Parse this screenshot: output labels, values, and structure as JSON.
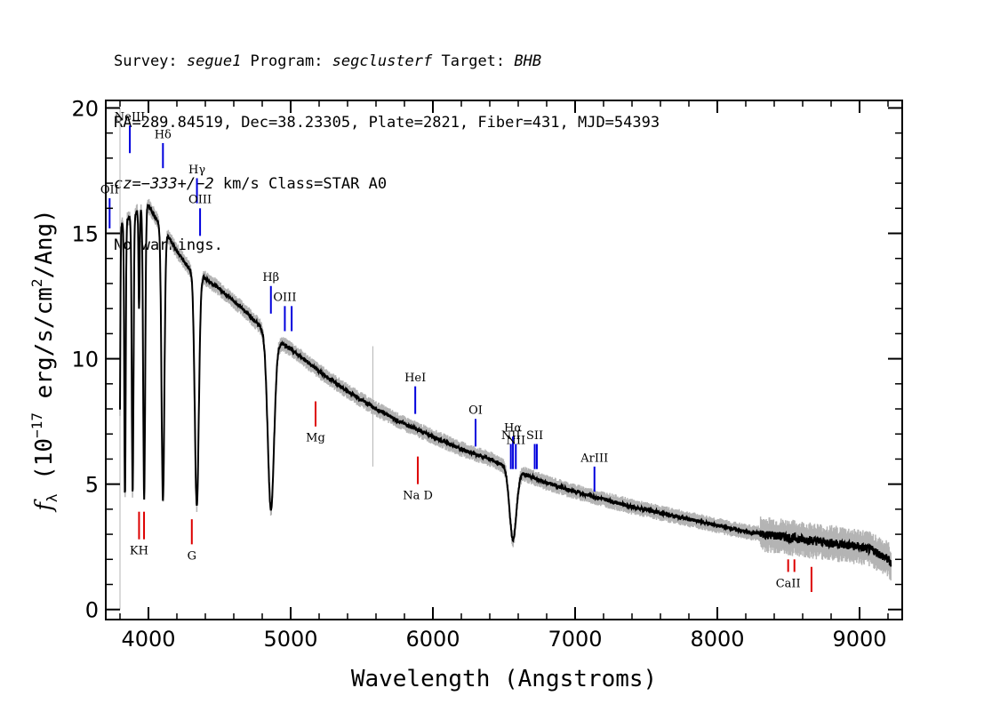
{
  "header": {
    "line1": {
      "survey_label": "Survey: ",
      "survey": "segue1",
      "program_label": " Program: ",
      "program": "segclusterf",
      "target_label": " Target: ",
      "target": "BHB"
    },
    "line2": "RA=289.84519, Dec=38.23305, Plate=2821, Fiber=431, MJD=54393",
    "line3": {
      "cz": "cz=−333+/−2",
      "rest": " km/s Class=STAR A0"
    },
    "line4": "No warnings."
  },
  "chart_data": {
    "type": "line",
    "title": "",
    "xlabel": "Wavelength (Angstroms)",
    "ylabel": "fλ (10⁻¹⁷ erg/s/cm²/Ang)",
    "xlim": [
      3700,
      9300
    ],
    "ylim": [
      -0.4,
      20.3
    ],
    "x_ticks": [
      4000,
      5000,
      6000,
      7000,
      8000,
      9000
    ],
    "y_ticks": [
      0,
      5,
      10,
      15,
      20
    ],
    "grid": false,
    "colors": {
      "spectrum": "#000000",
      "noise": "#b4b4b4",
      "emission": "#0000dd",
      "absorption": "#dd0000"
    },
    "continuum": [
      [
        3800,
        15.3
      ],
      [
        3900,
        15.8
      ],
      [
        4000,
        16.1
      ],
      [
        4100,
        15.2
      ],
      [
        4200,
        14.3
      ],
      [
        4300,
        13.5
      ],
      [
        4400,
        13.2
      ],
      [
        4500,
        12.8
      ],
      [
        4600,
        12.3
      ],
      [
        4700,
        11.8
      ],
      [
        4800,
        11.2
      ],
      [
        4900,
        10.7
      ],
      [
        5000,
        10.4
      ],
      [
        5200,
        9.5
      ],
      [
        5400,
        8.7
      ],
      [
        5600,
        8.0
      ],
      [
        5800,
        7.4
      ],
      [
        6000,
        6.9
      ],
      [
        6200,
        6.4
      ],
      [
        6400,
        6.0
      ],
      [
        6600,
        5.5
      ],
      [
        6800,
        5.05
      ],
      [
        7000,
        4.7
      ],
      [
        7200,
        4.4
      ],
      [
        7400,
        4.1
      ],
      [
        7600,
        3.85
      ],
      [
        7800,
        3.6
      ],
      [
        8000,
        3.35
      ],
      [
        8200,
        3.1
      ],
      [
        8400,
        2.95
      ],
      [
        8600,
        2.8
      ],
      [
        8800,
        2.65
      ],
      [
        9000,
        2.5
      ],
      [
        9100,
        2.35
      ],
      [
        9200,
        2.0
      ],
      [
        9220,
        1.8
      ]
    ],
    "absorption_features": [
      {
        "name": "H10",
        "x": 3798,
        "min": 7.0,
        "width": 4
      },
      {
        "name": "H9",
        "x": 3835,
        "min": 4.5,
        "width": 5
      },
      {
        "name": "H8",
        "x": 3889,
        "min": 4.6,
        "width": 6
      },
      {
        "name": "CaII K",
        "x": 3934,
        "min": 12.0,
        "width": 4
      },
      {
        "name": "H-epsilon",
        "x": 3970,
        "min": 4.4,
        "width": 7
      },
      {
        "name": "H-delta",
        "x": 4102,
        "min": 4.4,
        "width": 10
      },
      {
        "name": "H-gamma",
        "x": 4340,
        "min": 4.1,
        "width": 14
      },
      {
        "name": "H-beta",
        "x": 4861,
        "min": 4.0,
        "width": 22
      },
      {
        "name": "H-alpha",
        "x": 6563,
        "min": 2.8,
        "width": 24
      }
    ],
    "emission_lines": [
      {
        "label": "OII",
        "x": 3727,
        "y": [
          15.2,
          16.4
        ],
        "label_y": 16.6
      },
      {
        "label": "NeIII",
        "x": 3869,
        "y": [
          18.2,
          19.3
        ],
        "label_y": 19.5
      },
      {
        "label": "Hδ",
        "x": 4102,
        "y": [
          17.6,
          18.6
        ],
        "label_y": 18.8
      },
      {
        "label": "Hγ",
        "x": 4341,
        "y": [
          16.2,
          17.2
        ],
        "label_y": 17.4
      },
      {
        "label": "OIII",
        "x": 4363,
        "y": [
          14.9,
          16.0
        ],
        "label_y": 16.2
      },
      {
        "label": "Hβ",
        "x": 4861,
        "y": [
          11.8,
          12.9
        ],
        "label_y": 13.1
      },
      {
        "label": "OIII",
        "x": 4959,
        "y": [
          11.1,
          12.1
        ],
        "label_y": 12.3
      },
      {
        "label": "",
        "x": 5007,
        "y": [
          11.1,
          12.1
        ],
        "label_y": 0
      },
      {
        "label": "HeI",
        "x": 5876,
        "y": [
          7.8,
          8.9
        ],
        "label_y": 9.1
      },
      {
        "label": "OI",
        "x": 6300,
        "y": [
          6.5,
          7.6
        ],
        "label_y": 7.8
      },
      {
        "label": "NII",
        "x": 6548,
        "y": [
          5.6,
          6.6
        ],
        "label_y": 6.8
      },
      {
        "label": "Hα",
        "x": 6563,
        "y": [
          5.6,
          6.9
        ],
        "label_y": 7.1
      },
      {
        "label": "NII",
        "x": 6583,
        "y": [
          5.6,
          6.6
        ],
        "label_y": 6.6
      },
      {
        "label": "SII",
        "x": 6716,
        "y": [
          5.6,
          6.6
        ],
        "label_y": 6.8
      },
      {
        "label": "",
        "x": 6731,
        "y": [
          5.6,
          6.6
        ],
        "label_y": 0
      },
      {
        "label": "ArIII",
        "x": 7136,
        "y": [
          4.7,
          5.7
        ],
        "label_y": 5.9
      }
    ],
    "absorption_lines": [
      {
        "label": "KH",
        "x": 3934,
        "y": [
          2.8,
          3.9
        ],
        "label_y": 2.2
      },
      {
        "label": "",
        "x": 3969,
        "y": [
          2.8,
          3.9
        ],
        "label_y": 0
      },
      {
        "label": "G",
        "x": 4305,
        "y": [
          2.6,
          3.6
        ],
        "label_y": 2.0
      },
      {
        "label": "Mg",
        "x": 5175,
        "y": [
          7.3,
          8.3
        ],
        "label_y": 6.7
      },
      {
        "label": "Na D",
        "x": 5894,
        "y": [
          5.0,
          6.1
        ],
        "label_y": 4.4
      },
      {
        "label": "CaII",
        "x": 8498,
        "y": [
          1.5,
          2.0
        ],
        "label_y": 0.9
      },
      {
        "label": "",
        "x": 8542,
        "y": [
          1.5,
          2.0
        ],
        "label_y": 0
      },
      {
        "label": "",
        "x": 8662,
        "y": [
          0.7,
          1.7
        ],
        "label_y": 0
      }
    ]
  }
}
